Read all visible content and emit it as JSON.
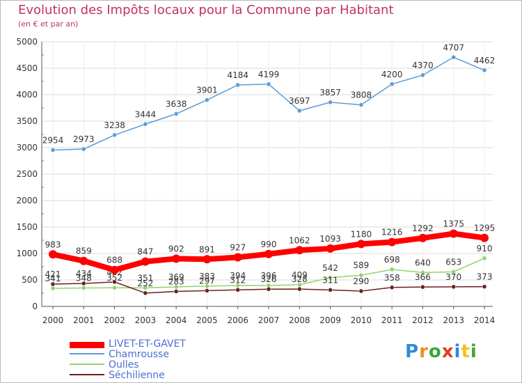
{
  "page": {
    "title": "Evolution des Impôts locaux pour la Commune par Habitant",
    "subtitle": "(en € et par an)"
  },
  "logo": {
    "text": "Proxiti",
    "letter_colors": [
      "#2e8bd6",
      "#f28b1c",
      "#3aa83a",
      "#e63a1e",
      "#2e8bd6",
      "#f2c21c",
      "#3aa83a"
    ]
  },
  "legend": {
    "items": [
      {
        "label": "LIVET-ET-GAVET",
        "color": "#ff0000",
        "thick": true
      },
      {
        "label": "Chamrousse",
        "color": "#5b9bd5",
        "thick": false
      },
      {
        "label": "Oulles",
        "color": "#8fd36a",
        "thick": false
      },
      {
        "label": "Séchilienne",
        "color": "#6b1f1f",
        "thick": false
      }
    ]
  },
  "chart_data": {
    "type": "line",
    "x": [
      "2000",
      "2001",
      "2002",
      "2003",
      "2004",
      "2005",
      "2006",
      "2007",
      "2008",
      "2009",
      "2010",
      "2011",
      "2012",
      "2013",
      "2014"
    ],
    "ylim": [
      0,
      5000
    ],
    "yticks": [
      0,
      500,
      1000,
      1500,
      2000,
      2500,
      3000,
      3500,
      4000,
      4500,
      5000
    ],
    "grid": true,
    "series": [
      {
        "name": "Chamrousse",
        "color": "#5b9bd5",
        "values": [
          2954,
          2973,
          3238,
          3444,
          3638,
          3901,
          4184,
          4199,
          3697,
          3857,
          3808,
          4200,
          4370,
          4707,
          4462
        ]
      },
      {
        "name": "Oulles",
        "color": "#8fd36a",
        "values": [
          341,
          348,
          352,
          351,
          369,
          383,
          394,
          396,
          409,
          542,
          589,
          698,
          640,
          653,
          910
        ]
      },
      {
        "name": "Séchilienne",
        "color": "#6b1f1f",
        "values": [
          421,
          434,
          462,
          252,
          283,
          297,
          312,
          326,
          328,
          311,
          290,
          358,
          366,
          370,
          373
        ]
      },
      {
        "name": "LIVET-ET-GAVET",
        "color": "#ff0000",
        "values": [
          983,
          859,
          688,
          847,
          902,
          891,
          927,
          990,
          1062,
          1093,
          1180,
          1216,
          1292,
          1375,
          1295
        ]
      }
    ]
  }
}
